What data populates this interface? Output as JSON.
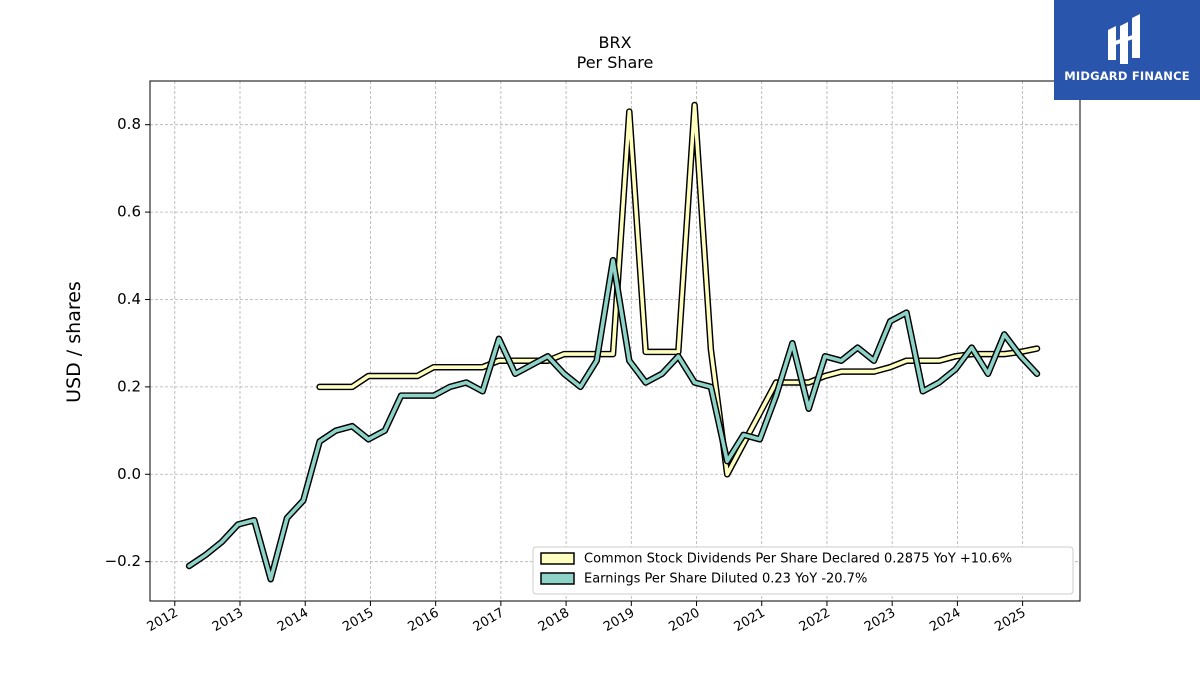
{
  "branding": {
    "logo_text": "MIDGARD FINANCE"
  },
  "chart_data": {
    "type": "line",
    "title": "BRX",
    "subtitle": "Per  Share",
    "xlabel": "",
    "ylabel": "USD / shares",
    "ylim": [
      -0.29,
      0.9
    ],
    "xlim": [
      2011.62,
      2025.88
    ],
    "yticks": [
      -0.2,
      0.0,
      0.2,
      0.4,
      0.6,
      0.8
    ],
    "ytick_labels": [
      "−0.2",
      "0.0",
      "0.2",
      "0.4",
      "0.6",
      "0.8"
    ],
    "xticks": [
      2012,
      2013,
      2014,
      2015,
      2016,
      2017,
      2018,
      2019,
      2020,
      2021,
      2022,
      2023,
      2024,
      2025
    ],
    "xtick_labels": [
      "2012",
      "2013",
      "2014",
      "2015",
      "2016",
      "2017",
      "2018",
      "2019",
      "2020",
      "2021",
      "2022",
      "2023",
      "2024",
      "2025"
    ],
    "grid": true,
    "legend_position": "lower-right",
    "series": [
      {
        "name": "Common Stock Dividends Per Share Declared  0.2875 YoY +10.6%",
        "color": "#ffffbf",
        "points": [
          [
            2014.22,
            0.2
          ],
          [
            2014.47,
            0.2
          ],
          [
            2014.72,
            0.2
          ],
          [
            2014.97,
            0.225
          ],
          [
            2015.22,
            0.225
          ],
          [
            2015.47,
            0.225
          ],
          [
            2015.72,
            0.225
          ],
          [
            2015.97,
            0.245
          ],
          [
            2016.22,
            0.245
          ],
          [
            2016.47,
            0.245
          ],
          [
            2016.72,
            0.245
          ],
          [
            2016.97,
            0.26
          ],
          [
            2017.22,
            0.26
          ],
          [
            2017.47,
            0.26
          ],
          [
            2017.72,
            0.26
          ],
          [
            2017.97,
            0.275
          ],
          [
            2018.22,
            0.275
          ],
          [
            2018.47,
            0.275
          ],
          [
            2018.72,
            0.275
          ],
          [
            2018.97,
            0.83
          ],
          [
            2019.22,
            0.28
          ],
          [
            2019.47,
            0.28
          ],
          [
            2019.72,
            0.28
          ],
          [
            2019.97,
            0.845
          ],
          [
            2020.22,
            0.285
          ],
          [
            2020.47,
            0.0
          ],
          [
            2020.72,
            0.07
          ],
          [
            2020.97,
            0.14
          ],
          [
            2021.22,
            0.21
          ],
          [
            2021.47,
            0.21
          ],
          [
            2021.72,
            0.21
          ],
          [
            2021.97,
            0.225
          ],
          [
            2022.22,
            0.235
          ],
          [
            2022.47,
            0.235
          ],
          [
            2022.72,
            0.235
          ],
          [
            2022.97,
            0.245
          ],
          [
            2023.22,
            0.26
          ],
          [
            2023.47,
            0.26
          ],
          [
            2023.72,
            0.26
          ],
          [
            2023.97,
            0.27
          ],
          [
            2024.22,
            0.275
          ],
          [
            2024.47,
            0.275
          ],
          [
            2024.72,
            0.275
          ],
          [
            2024.97,
            0.28
          ],
          [
            2025.22,
            0.2875
          ]
        ]
      },
      {
        "name": "Earnings Per Share Diluted  0.23 YoY -20.7%",
        "color": "#8dd3c7",
        "points": [
          [
            2012.22,
            -0.21
          ],
          [
            2012.47,
            -0.185
          ],
          [
            2012.72,
            -0.155
          ],
          [
            2012.97,
            -0.115
          ],
          [
            2013.22,
            -0.105
          ],
          [
            2013.47,
            -0.24
          ],
          [
            2013.72,
            -0.1
          ],
          [
            2013.97,
            -0.06
          ],
          [
            2014.22,
            0.075
          ],
          [
            2014.47,
            0.1
          ],
          [
            2014.72,
            0.11
          ],
          [
            2014.97,
            0.08
          ],
          [
            2015.22,
            0.1
          ],
          [
            2015.47,
            0.18
          ],
          [
            2015.72,
            0.18
          ],
          [
            2015.97,
            0.18
          ],
          [
            2016.22,
            0.2
          ],
          [
            2016.47,
            0.21
          ],
          [
            2016.72,
            0.19
          ],
          [
            2016.97,
            0.31
          ],
          [
            2017.22,
            0.23
          ],
          [
            2017.47,
            0.25
          ],
          [
            2017.72,
            0.27
          ],
          [
            2017.97,
            0.23
          ],
          [
            2018.22,
            0.2
          ],
          [
            2018.47,
            0.26
          ],
          [
            2018.72,
            0.49
          ],
          [
            2018.97,
            0.26
          ],
          [
            2019.22,
            0.21
          ],
          [
            2019.47,
            0.23
          ],
          [
            2019.72,
            0.27
          ],
          [
            2019.97,
            0.21
          ],
          [
            2020.22,
            0.2
          ],
          [
            2020.47,
            0.03
          ],
          [
            2020.72,
            0.09
          ],
          [
            2020.97,
            0.08
          ],
          [
            2021.22,
            0.18
          ],
          [
            2021.47,
            0.3
          ],
          [
            2021.72,
            0.15
          ],
          [
            2021.97,
            0.27
          ],
          [
            2022.22,
            0.26
          ],
          [
            2022.47,
            0.29
          ],
          [
            2022.72,
            0.26
          ],
          [
            2022.97,
            0.35
          ],
          [
            2023.22,
            0.37
          ],
          [
            2023.47,
            0.19
          ],
          [
            2023.72,
            0.21
          ],
          [
            2023.97,
            0.24
          ],
          [
            2024.22,
            0.29
          ],
          [
            2024.47,
            0.23
          ],
          [
            2024.72,
            0.32
          ],
          [
            2024.97,
            0.27
          ],
          [
            2025.22,
            0.23
          ]
        ]
      }
    ]
  }
}
